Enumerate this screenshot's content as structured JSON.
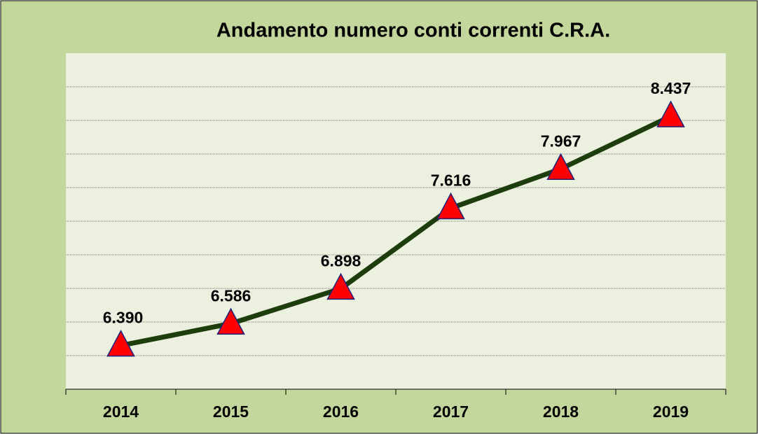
{
  "chart_data": {
    "type": "line",
    "title": "Andamento numero conti correnti C.R.A.",
    "categories": [
      "2014",
      "2015",
      "2016",
      "2017",
      "2018",
      "2019"
    ],
    "values": [
      6390,
      6586,
      6898,
      7616,
      7967,
      8437
    ],
    "value_labels": [
      "6.390",
      "6.586",
      "6.898",
      "7.616",
      "7.967",
      "8.437"
    ],
    "color": "#1e3d0c",
    "marker_color": "#ff0000",
    "ylim": [
      6000,
      9000
    ],
    "yticks": [
      6000,
      6300,
      6600,
      6900,
      7200,
      7500,
      7800,
      8100,
      8400,
      8700,
      9000
    ],
    "grid": true
  }
}
